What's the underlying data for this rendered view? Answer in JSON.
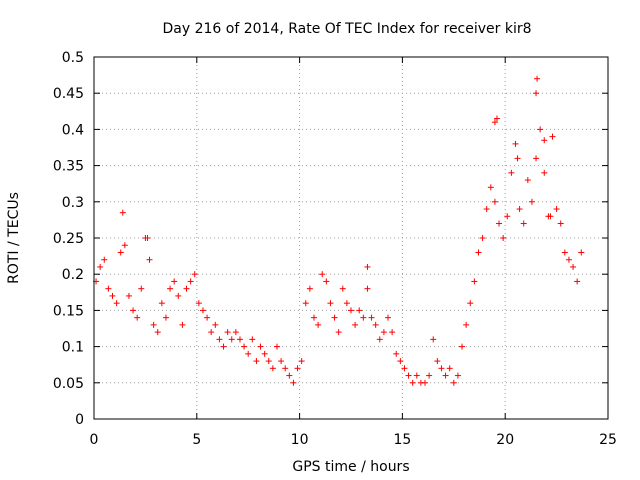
{
  "chart_data": {
    "type": "scatter",
    "title": "Day 216 of 2014, Rate Of TEC Index for receiver kir8",
    "xlabel": "GPS time / hours",
    "ylabel": "ROTI / TECUs",
    "xlim": [
      0,
      25
    ],
    "ylim": [
      0,
      0.5
    ],
    "xticks": [
      "0",
      "5",
      "10",
      "15",
      "20",
      "25"
    ],
    "yticks": [
      "0",
      "0.05",
      "0.1",
      "0.15",
      "0.2",
      "0.25",
      "0.3",
      "0.35",
      "0.4",
      "0.45",
      "0.5"
    ],
    "grid": true,
    "marker": "+",
    "color": "#ff0000",
    "series": [
      {
        "x": [
          0.1,
          0.3,
          0.5,
          0.7,
          0.9,
          1.1,
          1.3,
          1.5,
          1.7,
          1.9,
          2.1,
          2.3,
          2.5,
          2.7,
          2.9,
          3.1,
          3.3,
          3.5,
          3.7,
          3.9,
          4.1,
          4.3,
          4.5,
          4.7,
          4.9,
          5.1,
          5.3,
          5.5,
          5.7,
          5.9,
          6.1,
          6.3,
          6.5,
          6.7,
          6.9,
          7.1,
          7.3,
          7.5,
          7.7,
          7.9,
          8.1,
          8.3,
          8.5,
          8.7,
          8.9,
          9.1,
          9.3,
          9.5,
          9.7,
          9.9,
          10.1,
          10.3,
          10.5,
          10.7,
          10.9,
          11.1,
          11.3,
          11.5,
          11.7,
          11.9,
          12.1,
          12.3,
          12.5,
          12.7,
          12.9,
          13.1,
          13.3,
          13.5,
          13.7,
          13.9,
          14.1,
          14.3,
          14.5,
          14.7,
          14.9,
          15.1,
          15.3,
          15.5,
          15.7,
          15.9,
          16.1,
          16.3,
          16.5,
          16.7,
          16.9,
          17.1,
          17.3,
          17.5,
          17.7,
          17.9,
          18.1,
          18.3,
          18.5,
          18.7,
          18.9,
          19.1,
          19.3,
          19.5,
          19.7,
          19.9,
          20.1,
          20.3,
          20.5,
          20.7,
          20.9,
          21.1,
          21.3,
          21.5,
          21.7,
          21.9,
          22.1,
          22.3,
          22.5,
          22.7,
          22.9,
          23.1,
          23.3,
          23.5,
          23.7,
          1.4,
          2.6,
          13.3,
          19.5,
          19.6,
          20.6,
          21.5,
          21.55,
          21.9,
          22.2
        ],
        "y": [
          0.19,
          0.21,
          0.22,
          0.18,
          0.17,
          0.16,
          0.23,
          0.24,
          0.17,
          0.15,
          0.14,
          0.18,
          0.25,
          0.22,
          0.13,
          0.12,
          0.16,
          0.14,
          0.18,
          0.19,
          0.17,
          0.13,
          0.18,
          0.19,
          0.2,
          0.16,
          0.15,
          0.14,
          0.12,
          0.13,
          0.11,
          0.1,
          0.12,
          0.11,
          0.12,
          0.11,
          0.1,
          0.09,
          0.11,
          0.08,
          0.1,
          0.09,
          0.08,
          0.07,
          0.1,
          0.08,
          0.07,
          0.06,
          0.05,
          0.07,
          0.08,
          0.16,
          0.18,
          0.14,
          0.13,
          0.2,
          0.19,
          0.16,
          0.14,
          0.12,
          0.18,
          0.16,
          0.15,
          0.13,
          0.15,
          0.14,
          0.18,
          0.14,
          0.13,
          0.11,
          0.12,
          0.14,
          0.12,
          0.09,
          0.08,
          0.07,
          0.06,
          0.05,
          0.06,
          0.05,
          0.05,
          0.06,
          0.11,
          0.08,
          0.07,
          0.06,
          0.07,
          0.05,
          0.06,
          0.1,
          0.13,
          0.16,
          0.19,
          0.23,
          0.25,
          0.29,
          0.32,
          0.3,
          0.27,
          0.25,
          0.28,
          0.34,
          0.38,
          0.29,
          0.27,
          0.33,
          0.3,
          0.36,
          0.4,
          0.34,
          0.28,
          0.39,
          0.29,
          0.27,
          0.23,
          0.22,
          0.21,
          0.19,
          0.23,
          0.285,
          0.25,
          0.21,
          0.41,
          0.415,
          0.36,
          0.45,
          0.47,
          0.385,
          0.28
        ]
      }
    ]
  }
}
